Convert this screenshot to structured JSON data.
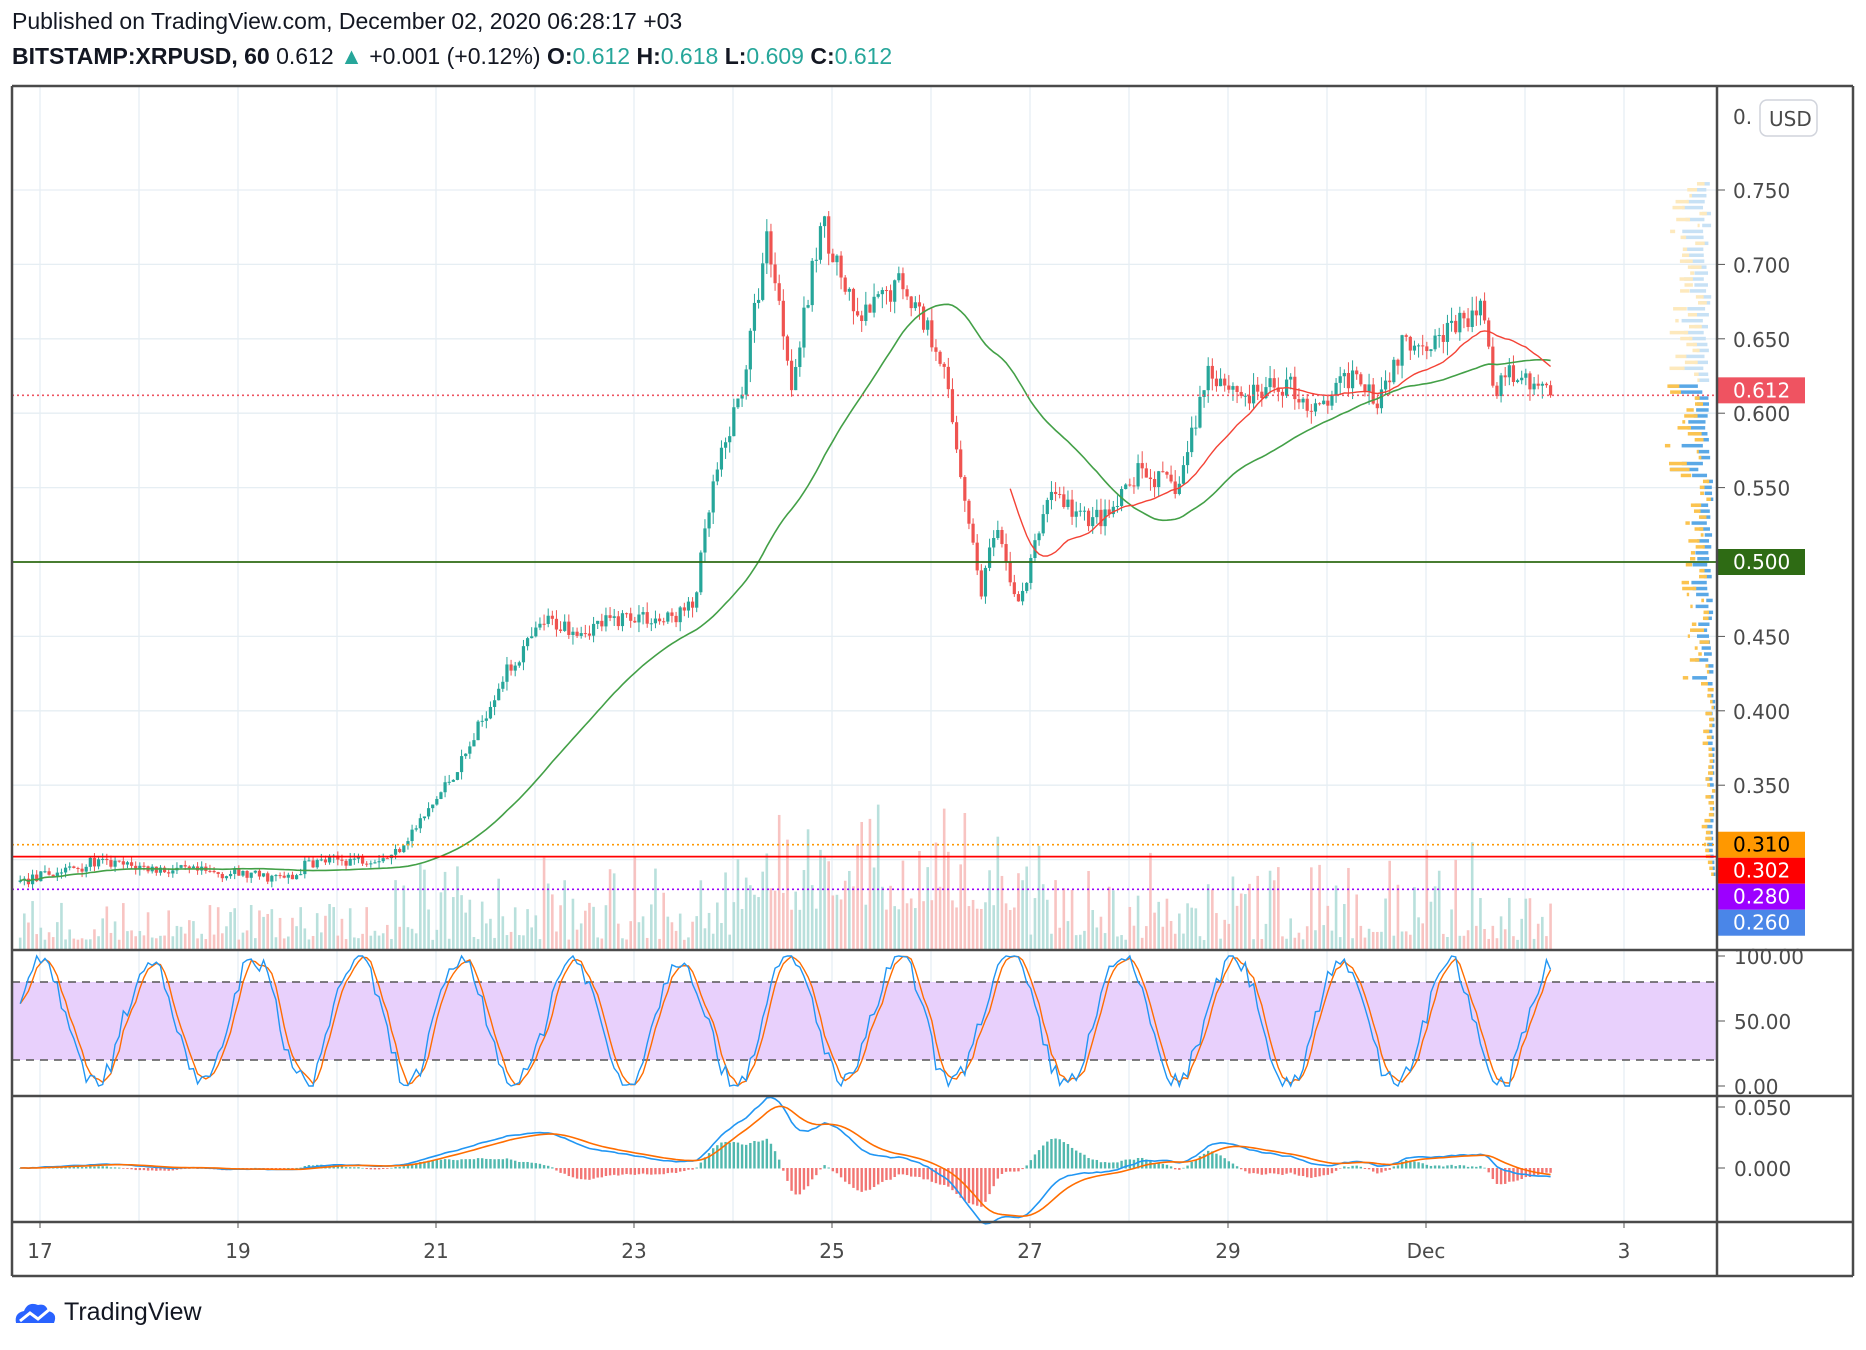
{
  "header": {
    "published": "Published on TradingView.com, December 02, 2020 06:28:17 +03",
    "symbol": "BITSTAMP:XRPUSD, 60",
    "last": "0.612",
    "change": "+0.001 (+0.12%)",
    "o_label": "O:",
    "o": "0.612",
    "h_label": "H:",
    "h": "0.618",
    "l_label": "L:",
    "l": "0.609",
    "c_label": "C:",
    "c": "0.612"
  },
  "currency_button": "USD",
  "logo": "TradingView",
  "chart_data": {
    "type": "candlestick",
    "interval": "60",
    "x_unit": "days since Nov 17 2020",
    "keypoints": [
      [
        -0.2,
        0.285
      ],
      [
        0.55,
        0.298
      ],
      [
        1.3,
        0.293
      ],
      [
        2.0,
        0.29
      ],
      [
        2.55,
        0.287
      ],
      [
        2.7,
        0.298
      ],
      [
        3.55,
        0.302
      ],
      [
        3.9,
        0.33
      ],
      [
        4.3,
        0.37
      ],
      [
        4.65,
        0.42
      ],
      [
        5.1,
        0.46
      ],
      [
        5.5,
        0.455
      ],
      [
        6.0,
        0.465
      ],
      [
        6.3,
        0.46
      ],
      [
        6.6,
        0.47
      ],
      [
        6.8,
        0.55
      ],
      [
        7.1,
        0.62
      ],
      [
        7.35,
        0.72
      ],
      [
        7.6,
        0.62
      ],
      [
        7.9,
        0.73
      ],
      [
        8.25,
        0.66
      ],
      [
        8.7,
        0.69
      ],
      [
        9.1,
        0.64
      ],
      [
        9.33,
        0.55
      ],
      [
        9.5,
        0.48
      ],
      [
        9.65,
        0.52
      ],
      [
        9.9,
        0.47
      ],
      [
        10.2,
        0.55
      ],
      [
        10.5,
        0.53
      ],
      [
        10.8,
        0.53
      ],
      [
        11.1,
        0.56
      ],
      [
        11.5,
        0.55
      ],
      [
        11.8,
        0.63
      ],
      [
        12.2,
        0.61
      ],
      [
        12.6,
        0.62
      ],
      [
        12.9,
        0.6
      ],
      [
        13.3,
        0.63
      ],
      [
        13.5,
        0.61
      ],
      [
        13.8,
        0.65
      ],
      [
        14.1,
        0.65
      ],
      [
        14.6,
        0.67
      ],
      [
        14.7,
        0.6
      ],
      [
        14.8,
        0.63
      ],
      [
        15.28,
        0.612
      ]
    ],
    "x_ticks": [
      {
        "d": 0,
        "label": "17"
      },
      {
        "d": 2,
        "label": "19"
      },
      {
        "d": 4,
        "label": "21"
      },
      {
        "d": 6,
        "label": "23"
      },
      {
        "d": 8,
        "label": "25"
      },
      {
        "d": 10,
        "label": "27"
      },
      {
        "d": 12,
        "label": "29"
      },
      {
        "d": 14,
        "label": "Dec"
      },
      {
        "d": 16,
        "label": "3"
      }
    ],
    "price_ticks": [
      "0.750",
      "0.700",
      "0.650",
      "0.600",
      "0.550",
      "0.450",
      "0.400",
      "0.350"
    ],
    "price_range": [
      0.255,
      0.815
    ],
    "top_cut_label": "0.",
    "levels": [
      {
        "price": 0.612,
        "label": "0.612",
        "color": "#ef5361",
        "style": "dotted"
      },
      {
        "price": 0.5,
        "label": "0.500",
        "color": "#2e6b14",
        "style": "solid"
      },
      {
        "price": 0.31,
        "label": "0.310",
        "color": "#ff9800",
        "style": "dotted"
      },
      {
        "price": 0.302,
        "label": "0.302",
        "color": "#ff0000",
        "style": "solid"
      },
      {
        "price": 0.28,
        "label": "0.280",
        "color": "#9c00ff",
        "style": "dotted"
      },
      {
        "price": 0.26,
        "label": "0.260",
        "color": "#4a86e8",
        "style": "dotted"
      }
    ],
    "rsi": {
      "ticks": [
        "100.00",
        "50.00",
        "0.00"
      ],
      "upper": 80,
      "lower": 20
    },
    "macd": {
      "ticks": [
        "0.050",
        "0.000"
      ]
    },
    "colors": {
      "up": "#26a69a",
      "down": "#ef5350",
      "ma_slow": "#43a047",
      "ma_fast": "#f44336",
      "rsi_k": "#2196f3",
      "rsi_d": "#ff6d00",
      "rsi_band": "#e8d0fc"
    }
  }
}
